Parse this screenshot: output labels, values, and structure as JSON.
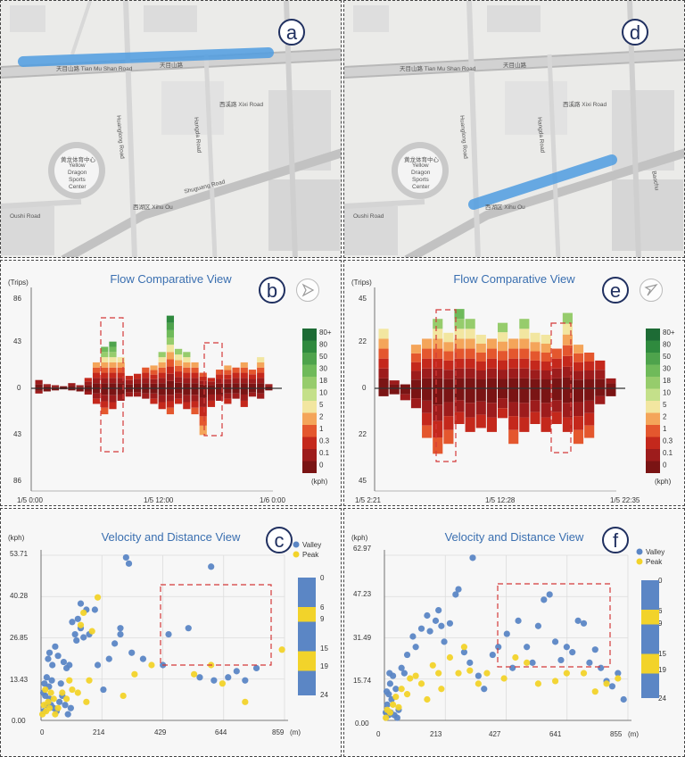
{
  "panels": {
    "a": {
      "letter": "a"
    },
    "d": {
      "letter": "d"
    },
    "b": {
      "letter": "b",
      "title": "Flow Comparative View",
      "unit": "(Trips)",
      "y_ticks": [
        "86",
        "43",
        "0",
        "43",
        "86"
      ],
      "x_ticks": [
        "1/5 0:00",
        "1/5 12:00",
        "1/6 0:00"
      ]
    },
    "e": {
      "letter": "e",
      "title": "Flow Comparative View",
      "unit": "(Trips)",
      "y_ticks": [
        "45",
        "22",
        "0",
        "22",
        "45"
      ],
      "x_ticks": [
        "1/5 2:21",
        "1/5 12:28",
        "1/5 22:35"
      ]
    },
    "c": {
      "letter": "c",
      "title": "Velocity and Distance View",
      "unit": "(kph)",
      "x_unit": "(m)",
      "y_ticks": [
        "53.71",
        "40.28",
        "26.85",
        "13.43",
        "0.00"
      ],
      "x_ticks": [
        "0",
        "214",
        "429",
        "644",
        "859"
      ]
    },
    "f": {
      "letter": "f",
      "title": "Velocity and Distance View",
      "unit": "(kph)",
      "x_unit": "(m)",
      "y_ticks": [
        "62.97",
        "47.23",
        "31.49",
        "15.74",
        "0.00"
      ],
      "x_ticks": [
        "0",
        "213",
        "427",
        "641",
        "855"
      ]
    }
  },
  "map_labels": {
    "venue": [
      "黄龙体育中心",
      "Yellow",
      "Dragon",
      "Sports",
      "Center"
    ],
    "tianmushan": "天目山路 Tian Mu Shan Road",
    "tianmushan_cn": "天目山路",
    "huanglong": "Huanglong Road",
    "hangda": "Hangda Road",
    "xixi": "西溪路 Xixi Road",
    "shuguang": "Shuguang Road",
    "shuguang_cn": "曙光路",
    "xihuou": "西湖区 Xihu Ou",
    "oushi": "Oushi Road",
    "baochu": "Baochu"
  },
  "flow_legend": {
    "labels": [
      "80+",
      "80",
      "50",
      "30",
      "18",
      "10",
      "5",
      "2",
      "1",
      "0.3",
      "0.1",
      "0"
    ],
    "colors": [
      "#1d6b35",
      "#2f8a3e",
      "#4ea34c",
      "#6fba5a",
      "#96cc6c",
      "#c4e08a",
      "#f2e6a0",
      "#f4a55a",
      "#e4572e",
      "#c4281c",
      "#9d1c1c",
      "#7a1414"
    ],
    "unit": "(kph)"
  },
  "scatter_legend": {
    "valley_label": "Valley",
    "peak_label": "Peak",
    "valley_color": "#5b86c5",
    "peak_color": "#f2d32a",
    "c_ticks": [
      "0",
      "6",
      "9",
      "15",
      "19",
      "24"
    ],
    "f_ticks": [
      "0",
      "6",
      "9",
      "15",
      "19",
      "24"
    ]
  },
  "chart_data": [
    {
      "type": "bar",
      "panel": "b",
      "title": "Flow Comparative View",
      "ylabel": "(Trips)",
      "ylim": [
        -86,
        86
      ],
      "x_ticks": [
        "1/5 0:00",
        "1/5 12:00",
        "1/6 0:00"
      ],
      "series": [
        {
          "name": "up",
          "values": [
            8,
            4,
            3,
            2,
            5,
            3,
            10,
            25,
            40,
            45,
            30,
            12,
            14,
            20,
            22,
            35,
            70,
            38,
            35,
            25,
            15,
            10,
            18,
            22,
            20,
            25,
            18,
            30,
            4
          ]
        },
        {
          "name": "down",
          "values": [
            -5,
            -3,
            -2,
            -1,
            -2,
            -3,
            -6,
            -15,
            -25,
            -20,
            -12,
            -8,
            -8,
            -10,
            -15,
            -20,
            -25,
            -15,
            -20,
            -25,
            -45,
            -18,
            -12,
            -15,
            -10,
            -18,
            -8,
            -10,
            -2
          ]
        }
      ]
    },
    {
      "type": "bar",
      "panel": "e",
      "title": "Flow Comparative View",
      "ylabel": "(Trips)",
      "ylim": [
        -45,
        45
      ],
      "x_ticks": [
        "1/5 2:21",
        "1/5 12:28",
        "1/5 22:35"
      ],
      "series": [
        {
          "name": "up",
          "values": [
            30,
            4,
            2,
            22,
            25,
            35,
            28,
            40,
            35,
            27,
            25,
            33,
            25,
            35,
            28,
            27,
            20,
            38,
            22,
            18,
            14,
            5
          ]
        },
        {
          "name": "down",
          "values": [
            -4,
            -3,
            -6,
            -10,
            -25,
            -33,
            -28,
            -18,
            -22,
            -20,
            -22,
            -15,
            -28,
            -22,
            -18,
            -22,
            -18,
            -22,
            -28,
            -25,
            -8,
            -4
          ]
        }
      ]
    },
    {
      "type": "scatter",
      "panel": "c",
      "title": "Velocity and Distance View",
      "xlabel": "(m)",
      "ylabel": "(kph)",
      "xlim": [
        0,
        859
      ],
      "ylim": [
        0,
        53.71
      ],
      "series": [
        {
          "name": "Valley",
          "points": [
            [
              10,
              3
            ],
            [
              15,
              8
            ],
            [
              20,
              14
            ],
            [
              25,
              20
            ],
            [
              30,
              22
            ],
            [
              40,
              18
            ],
            [
              50,
              24
            ],
            [
              60,
              21
            ],
            [
              70,
              12
            ],
            [
              80,
              19
            ],
            [
              90,
              17
            ],
            [
              100,
              18
            ],
            [
              120,
              28
            ],
            [
              130,
              33
            ],
            [
              140,
              30
            ],
            [
              150,
              27
            ],
            [
              170,
              28
            ],
            [
              190,
              36
            ],
            [
              200,
              18
            ],
            [
              220,
              10
            ],
            [
              240,
              20
            ],
            [
              260,
              25
            ],
            [
              280,
              28
            ],
            [
              300,
              53
            ],
            [
              310,
              51
            ],
            [
              280,
              30
            ],
            [
              320,
              22
            ],
            [
              360,
              20
            ],
            [
              430,
              18
            ],
            [
              450,
              28
            ],
            [
              520,
              30
            ],
            [
              560,
              14
            ],
            [
              600,
              50
            ],
            [
              610,
              13
            ],
            [
              660,
              14
            ],
            [
              690,
              16
            ],
            [
              720,
              13
            ],
            [
              760,
              17
            ],
            [
              30,
              7
            ],
            [
              35,
              5
            ],
            [
              45,
              4
            ],
            [
              55,
              3
            ],
            [
              65,
              6
            ],
            [
              75,
              8
            ],
            [
              85,
              5
            ],
            [
              95,
              2
            ],
            [
              105,
              4
            ],
            [
              20,
              5
            ],
            [
              12,
              12
            ],
            [
              8,
              9
            ],
            [
              28,
              11
            ],
            [
              38,
              13
            ],
            [
              140,
              38
            ],
            [
              160,
              36
            ],
            [
              110,
              32
            ],
            [
              125,
              26
            ]
          ]
        },
        {
          "name": "Peak",
          "points": [
            [
              5,
              2
            ],
            [
              10,
              5
            ],
            [
              18,
              3
            ],
            [
              25,
              6
            ],
            [
              35,
              9
            ],
            [
              45,
              7
            ],
            [
              60,
              4
            ],
            [
              75,
              9
            ],
            [
              90,
              7
            ],
            [
              100,
              13
            ],
            [
              110,
              10
            ],
            [
              130,
              9
            ],
            [
              160,
              6
            ],
            [
              170,
              13
            ],
            [
              200,
              40
            ],
            [
              150,
              35
            ],
            [
              140,
              31
            ],
            [
              180,
              29
            ],
            [
              290,
              8
            ],
            [
              330,
              15
            ],
            [
              390,
              18
            ],
            [
              540,
              15
            ],
            [
              600,
              18
            ],
            [
              640,
              12
            ],
            [
              720,
              6
            ],
            [
              850,
              23
            ],
            [
              15,
              10
            ],
            [
              30,
              4
            ],
            [
              50,
              2
            ]
          ]
        }
      ]
    },
    {
      "type": "scatter",
      "panel": "f",
      "title": "Velocity and Distance View",
      "xlabel": "(m)",
      "ylabel": "(kph)",
      "xlim": [
        0,
        855
      ],
      "ylim": [
        0,
        62.97
      ],
      "series": [
        {
          "name": "Valley",
          "points": [
            [
              5,
              3
            ],
            [
              10,
              6
            ],
            [
              15,
              10
            ],
            [
              20,
              14
            ],
            [
              25,
              8
            ],
            [
              30,
              17
            ],
            [
              40,
              12
            ],
            [
              50,
              4
            ],
            [
              60,
              20
            ],
            [
              70,
              18
            ],
            [
              80,
              25
            ],
            [
              100,
              32
            ],
            [
              110,
              28
            ],
            [
              130,
              35
            ],
            [
              150,
              40
            ],
            [
              160,
              34
            ],
            [
              180,
              38
            ],
            [
              190,
              42
            ],
            [
              200,
              36
            ],
            [
              210,
              30
            ],
            [
              230,
              37
            ],
            [
              250,
              48
            ],
            [
              260,
              50
            ],
            [
              280,
              26
            ],
            [
              300,
              22
            ],
            [
              310,
              62
            ],
            [
              330,
              17
            ],
            [
              350,
              12
            ],
            [
              380,
              25
            ],
            [
              400,
              28
            ],
            [
              430,
              33
            ],
            [
              450,
              20
            ],
            [
              470,
              38
            ],
            [
              500,
              28
            ],
            [
              520,
              22
            ],
            [
              540,
              36
            ],
            [
              560,
              46
            ],
            [
              580,
              48
            ],
            [
              600,
              30
            ],
            [
              620,
              23
            ],
            [
              640,
              28
            ],
            [
              660,
              26
            ],
            [
              680,
              38
            ],
            [
              700,
              37
            ],
            [
              720,
              22
            ],
            [
              740,
              27
            ],
            [
              760,
              20
            ],
            [
              780,
              15
            ],
            [
              800,
              13
            ],
            [
              820,
              18
            ],
            [
              840,
              8
            ],
            [
              15,
              2
            ],
            [
              22,
              3
            ],
            [
              35,
              2
            ],
            [
              45,
              1
            ],
            [
              8,
              11
            ],
            [
              18,
              18
            ]
          ]
        },
        {
          "name": "Peak",
          "points": [
            [
              5,
              1
            ],
            [
              10,
              4
            ],
            [
              20,
              3
            ],
            [
              30,
              6
            ],
            [
              40,
              9
            ],
            [
              50,
              5
            ],
            [
              60,
              12
            ],
            [
              80,
              10
            ],
            [
              90,
              16
            ],
            [
              110,
              17
            ],
            [
              130,
              14
            ],
            [
              150,
              8
            ],
            [
              170,
              21
            ],
            [
              190,
              18
            ],
            [
              200,
              12
            ],
            [
              230,
              24
            ],
            [
              260,
              18
            ],
            [
              280,
              28
            ],
            [
              300,
              19
            ],
            [
              330,
              14
            ],
            [
              360,
              18
            ],
            [
              420,
              16
            ],
            [
              460,
              24
            ],
            [
              500,
              22
            ],
            [
              540,
              14
            ],
            [
              600,
              15
            ],
            [
              640,
              18
            ],
            [
              700,
              18
            ],
            [
              740,
              11
            ],
            [
              780,
              14
            ],
            [
              820,
              16
            ]
          ]
        }
      ]
    }
  ]
}
